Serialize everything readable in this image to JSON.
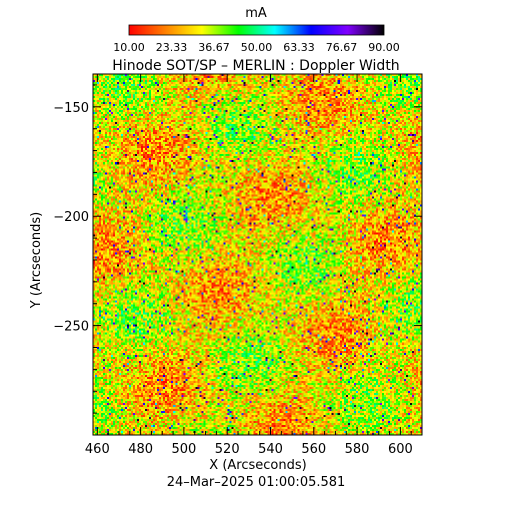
{
  "chart_data": {
    "type": "heatmap",
    "title": "Hinode SOT/SP – MERLIN : Doppler Width",
    "colorbar": {
      "label": "mA",
      "tick_labels": [
        "10.00",
        "23.33",
        "36.67",
        "50.00",
        "63.33",
        "76.67",
        "90.00"
      ],
      "range": [
        10,
        90
      ],
      "colormap": [
        "#ff0000",
        "#ff8000",
        "#ffff00",
        "#00ff00",
        "#00ffff",
        "#0000ff",
        "#8000ff",
        "#000000"
      ]
    },
    "xlabel": "X (Arcseconds)",
    "ylabel": "Y (Arcseconds)",
    "xlim": [
      458,
      610
    ],
    "ylim": [
      -300,
      -135
    ],
    "x_ticks": [
      {
        "value": 460,
        "label": "460"
      },
      {
        "value": 480,
        "label": "480"
      },
      {
        "value": 500,
        "label": "500"
      },
      {
        "value": 520,
        "label": "520"
      },
      {
        "value": 540,
        "label": "540"
      },
      {
        "value": 560,
        "label": "560"
      },
      {
        "value": 580,
        "label": "580"
      },
      {
        "value": 600,
        "label": "600"
      }
    ],
    "y_ticks": [
      {
        "value": -150,
        "label": "−150"
      },
      {
        "value": -200,
        "label": "−200"
      },
      {
        "value": -250,
        "label": "−250"
      }
    ],
    "date_label": "24–Mar–2025 01:00:05.581"
  }
}
